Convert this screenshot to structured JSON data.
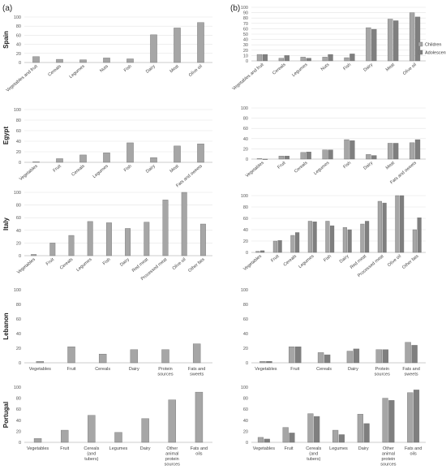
{
  "panel_labels": {
    "left": "(a)",
    "right": "(b)"
  },
  "colors": {
    "single": "#a6a6a6",
    "children": "#a6a6a6",
    "adolescents": "#7f7f7f",
    "bar_stroke": "#6f6f6f"
  },
  "legend": {
    "children": "Children",
    "adolescents": "Adolescents",
    "placement": "right of Spain (b) chart"
  },
  "chart_data": [
    {
      "id": "spain-a",
      "panel": "a",
      "country": "Spain",
      "type": "bar",
      "categories": [
        "Vegetables and fruit",
        "Cereals",
        "Legumes",
        "Nuts",
        "Fish",
        "Dairy",
        "Meat",
        "Olive oil"
      ],
      "series": [
        {
          "values": [
            13,
            7,
            6,
            10,
            8,
            61,
            76,
            88
          ]
        }
      ],
      "ylim": [
        0,
        100
      ],
      "yticks": [
        0,
        20,
        40,
        60,
        80,
        100
      ],
      "grid": true,
      "label_rotation": "diagonal"
    },
    {
      "id": "spain-b",
      "panel": "b",
      "country": "Spain",
      "type": "bar",
      "categories": [
        "Vegetables and fruit",
        "Cereals",
        "Legumes",
        "Nuts",
        "Fish",
        "Dairy",
        "Meat",
        "Olive oil"
      ],
      "series": [
        {
          "name": "Children",
          "values": [
            12,
            5,
            7,
            7,
            6,
            62,
            78,
            90
          ]
        },
        {
          "name": "Adolescents",
          "values": [
            12,
            10,
            5,
            12,
            13,
            59,
            75,
            82
          ]
        }
      ],
      "ylim": [
        0,
        100
      ],
      "yticks": [
        0,
        10,
        20,
        30,
        40,
        50,
        60,
        70,
        80,
        90,
        100
      ],
      "grid": true,
      "label_rotation": "diagonal"
    },
    {
      "id": "egypt-a",
      "panel": "a",
      "country": "Egypt",
      "type": "bar",
      "categories": [
        "Vegetables",
        "Fruit",
        "Cereals",
        "Legumes",
        "Fish",
        "Dairy",
        "Meat",
        "Fats and sweets"
      ],
      "series": [
        {
          "values": [
            1,
            7,
            14,
            18,
            37,
            9,
            31,
            35
          ]
        }
      ],
      "ylim": [
        0,
        100
      ],
      "yticks": [
        0,
        20,
        40,
        60,
        80,
        100
      ],
      "grid": true,
      "label_rotation": "diagonal"
    },
    {
      "id": "egypt-b",
      "panel": "b",
      "country": "Egypt",
      "type": "bar",
      "categories": [
        "Vegetables",
        "Fruit",
        "Cereals",
        "Legumes",
        "Fish",
        "Dairy",
        "Meat",
        "Fats and sweets"
      ],
      "series": [
        {
          "name": "Children",
          "values": [
            1,
            6,
            13,
            18,
            38,
            9,
            31,
            32
          ]
        },
        {
          "name": "Adolescents",
          "values": [
            0,
            6,
            14,
            18,
            36,
            7,
            31,
            38
          ]
        }
      ],
      "ylim": [
        0,
        100
      ],
      "yticks": [
        0,
        20,
        40,
        60,
        80,
        100
      ],
      "grid": true,
      "label_rotation": "diagonal"
    },
    {
      "id": "italy-a",
      "panel": "a",
      "country": "Italy",
      "type": "bar",
      "categories": [
        "Vegetables",
        "Fruit",
        "Cereals",
        "Legumes",
        "Fish",
        "Dairy",
        "Red meat",
        "Processed meat",
        "Olive oil",
        "Other fats"
      ],
      "series": [
        {
          "values": [
            2,
            20,
            32,
            54,
            52,
            43,
            53,
            88,
            100,
            50
          ]
        }
      ],
      "ylim": [
        0,
        100
      ],
      "yticks": [
        0,
        20,
        40,
        60,
        80,
        100
      ],
      "grid": true,
      "label_rotation": "diagonal"
    },
    {
      "id": "italy-b",
      "panel": "b",
      "country": "Italy",
      "type": "bar",
      "categories": [
        "Vegetables",
        "Fruit",
        "Cereals",
        "Legumes",
        "Fish",
        "Dairy",
        "Red meat",
        "Processed meat",
        "Olive oil",
        "Other fats"
      ],
      "series": [
        {
          "name": "Children",
          "values": [
            2,
            20,
            30,
            55,
            55,
            44,
            50,
            90,
            100,
            40
          ]
        },
        {
          "name": "Adolescents",
          "values": [
            3,
            21,
            35,
            54,
            47,
            40,
            55,
            87,
            100,
            61
          ]
        }
      ],
      "ylim": [
        0,
        100
      ],
      "yticks": [
        0,
        20,
        40,
        60,
        80,
        100
      ],
      "grid": true,
      "label_rotation": "diagonal"
    },
    {
      "id": "lebanon-a",
      "panel": "a",
      "country": "Lebanon",
      "type": "bar",
      "categories": [
        "Vegetables",
        "Fruit",
        "Cereals",
        "Dairy",
        "Protein sources",
        "Fats and sweets"
      ],
      "series": [
        {
          "values": [
            2,
            22,
            12,
            18,
            18,
            26
          ]
        }
      ],
      "ylim": [
        0,
        100
      ],
      "yticks": [
        0,
        20,
        40,
        60,
        80,
        100
      ],
      "grid": false,
      "label_rotation": "horizontal"
    },
    {
      "id": "lebanon-b",
      "panel": "b",
      "country": "Lebanon",
      "type": "bar",
      "categories": [
        "Vegetables",
        "Fruit",
        "Cereals",
        "Dairy",
        "Protein sources",
        "Fats and sweets"
      ],
      "series": [
        {
          "name": "Children",
          "values": [
            2,
            22,
            14,
            16,
            18,
            28
          ]
        },
        {
          "name": "Adolescents",
          "values": [
            2,
            22,
            11,
            19,
            18,
            24
          ]
        }
      ],
      "ylim": [
        0,
        100
      ],
      "yticks": [
        0,
        20,
        40,
        60,
        80,
        100
      ],
      "grid": false,
      "label_rotation": "horizontal"
    },
    {
      "id": "portugal-a",
      "panel": "a",
      "country": "Portugal",
      "type": "bar",
      "categories": [
        "Vegetables",
        "Fruit",
        "Cereals (and tubers)",
        "Legumes",
        "Dairy",
        "Other animal protein sources",
        "Fats and oils"
      ],
      "series": [
        {
          "values": [
            7,
            22,
            49,
            18,
            43,
            77,
            91
          ]
        }
      ],
      "ylim": [
        0,
        100
      ],
      "yticks": [
        0,
        20,
        40,
        60,
        80,
        100
      ],
      "grid": false,
      "label_rotation": "horizontal"
    },
    {
      "id": "portugal-b",
      "panel": "b",
      "country": "Portugal",
      "type": "bar",
      "categories": [
        "Vegetables",
        "Fruit",
        "Cereals (and tubers)",
        "Legumes",
        "Dairy",
        "Other animal protein sources",
        "Fats and oils"
      ],
      "series": [
        {
          "name": "Children",
          "values": [
            9,
            27,
            52,
            22,
            51,
            80,
            90
          ]
        },
        {
          "name": "Adolescents",
          "values": [
            6,
            17,
            47,
            14,
            34,
            76,
            95
          ]
        }
      ],
      "ylim": [
        0,
        100
      ],
      "yticks": [
        0,
        20,
        40,
        60,
        80,
        100
      ],
      "grid": false,
      "label_rotation": "horizontal"
    }
  ]
}
